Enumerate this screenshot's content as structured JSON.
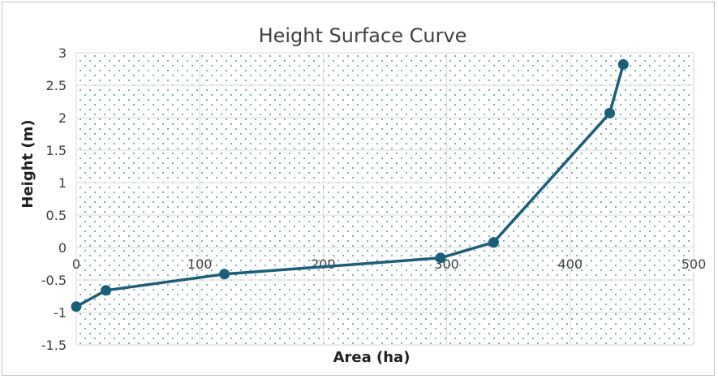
{
  "chart_data": {
    "type": "scatter",
    "title": "Height Surface Curve",
    "xlabel": "Area (ha)",
    "ylabel": "Height (m)",
    "xlim": [
      0,
      500
    ],
    "ylim": [
      -1.5,
      3
    ],
    "xticks": [
      0,
      100,
      200,
      300,
      400,
      500
    ],
    "yticks": [
      -1.5,
      -1,
      -0.5,
      0,
      0.5,
      1,
      1.5,
      2,
      2.5,
      3
    ],
    "xtick_labels": [
      "0",
      "100",
      "200",
      "300",
      "400",
      "500"
    ],
    "ytick_labels": [
      "-1.5",
      "-1",
      "-0.5",
      "0",
      "0.5",
      "1",
      "1.5",
      "2",
      "2.5",
      "3"
    ],
    "grid": true,
    "lines_connected": true,
    "series": [
      {
        "points": [
          {
            "x": 0,
            "y": -0.91
          },
          {
            "x": 24,
            "y": -0.66
          },
          {
            "x": 120,
            "y": -0.41
          },
          {
            "x": 295,
            "y": -0.16
          },
          {
            "x": 338,
            "y": 0.08
          },
          {
            "x": 432,
            "y": 2.07
          },
          {
            "x": 443,
            "y": 2.82
          }
        ],
        "color": "#1b5e7a"
      }
    ],
    "plot_background_pattern": "dotted",
    "pattern_color": "#1b7a72"
  }
}
